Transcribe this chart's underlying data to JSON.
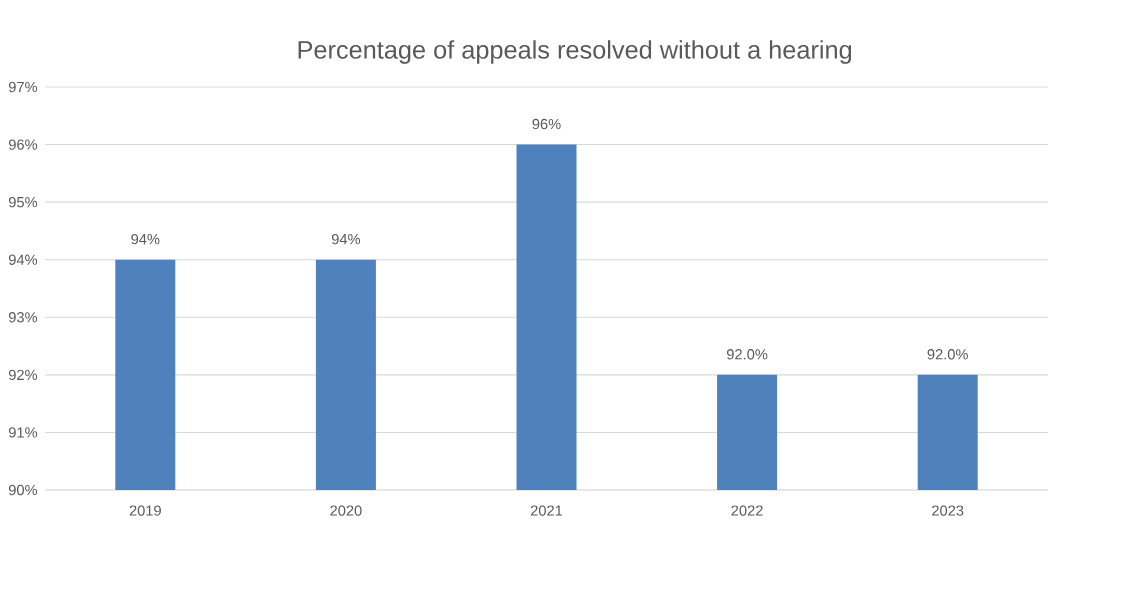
{
  "chart_data": {
    "type": "bar",
    "title": "Percentage of appeals resolved without a hearing",
    "categories": [
      "2019",
      "2020",
      "2021",
      "2022",
      "2023"
    ],
    "values": [
      94,
      94,
      96,
      92,
      92
    ],
    "value_labels": [
      "94%",
      "94%",
      "96%",
      "92.0%",
      "92.0%"
    ],
    "color": "#4f81bd",
    "ylim": [
      90,
      97
    ],
    "yticks": [
      {
        "value": 90,
        "label": "90%"
      },
      {
        "value": 91,
        "label": "91%"
      },
      {
        "value": 92,
        "label": "92%"
      },
      {
        "value": 93,
        "label": "93%"
      },
      {
        "value": 94,
        "label": "94%"
      },
      {
        "value": 95,
        "label": "95%"
      },
      {
        "value": 96,
        "label": "96%"
      },
      {
        "value": 97,
        "label": "97%"
      }
    ],
    "grid": "y"
  }
}
